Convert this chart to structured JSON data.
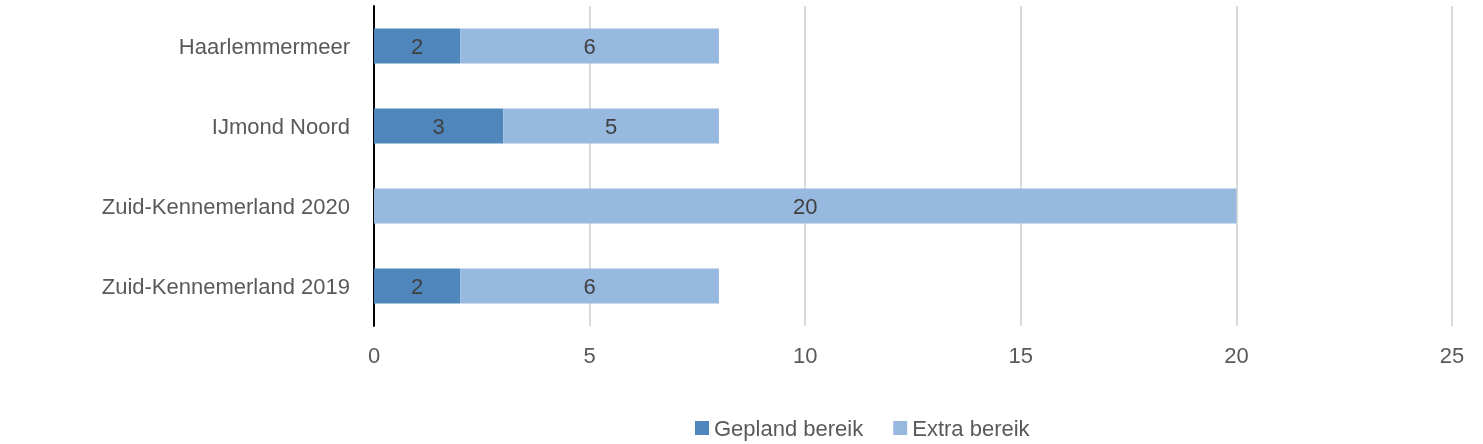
{
  "chart_data": {
    "type": "bar",
    "orientation": "horizontal",
    "stacked": true,
    "categories": [
      "Haarlemmermeer",
      "IJmond Noord",
      "Zuid-Kennemerland 2020",
      "Zuid-Kennemerland 2019"
    ],
    "series": [
      {
        "name": "Gepland bereik",
        "color": "#4f87bd",
        "values": [
          2,
          3,
          null,
          2
        ]
      },
      {
        "name": "Extra bereik",
        "color": "#97b9e0",
        "values": [
          6,
          5,
          20,
          6
        ]
      }
    ],
    "xlim": [
      0,
      25
    ],
    "xticks": [
      0,
      5,
      10,
      15,
      20,
      25
    ],
    "grid": "x",
    "legend": "bottom",
    "data_labels": true
  }
}
